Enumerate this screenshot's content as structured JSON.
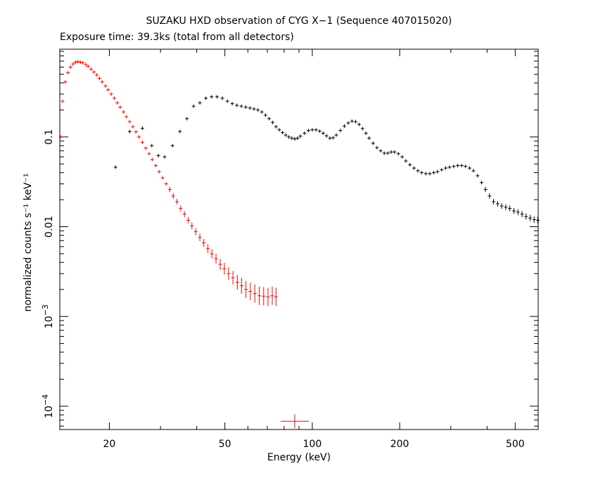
{
  "chart_data": {
    "type": "scatter",
    "title": "SUZAKU HXD observation of CYG X−1 (Sequence 407015020)",
    "subtitle": "Exposure time: 39.3ks (total from all detectors)",
    "xlabel": "Energy (keV)",
    "ylabel": "normalized counts s⁻¹ keV⁻¹",
    "x_scale": "log",
    "y_scale": "log",
    "xlim": [
      13.5,
      600
    ],
    "ylim": [
      5.5e-05,
      0.95
    ],
    "x_ticks": [
      {
        "value": 20,
        "label": "20"
      },
      {
        "value": 50,
        "label": "50"
      },
      {
        "value": 100,
        "label": "100"
      },
      {
        "value": 200,
        "label": "200"
      },
      {
        "value": 500,
        "label": "500"
      }
    ],
    "y_ticks": [
      {
        "value": 0.1,
        "label": "0.1"
      },
      {
        "value": 0.01,
        "label": "0.01"
      },
      {
        "value": 0.001,
        "base": "10",
        "exp": "−3"
      },
      {
        "value": 0.0001,
        "base": "10",
        "exp": "−4"
      }
    ],
    "grid": false,
    "series": [
      {
        "color": "#ff0000",
        "points": [
          [
            13.6,
            0.1
          ],
          [
            13.8,
            0.25
          ],
          [
            14.1,
            0.41
          ],
          [
            14.4,
            0.52
          ],
          [
            14.7,
            0.6
          ],
          [
            15.0,
            0.65
          ],
          [
            15.3,
            0.68
          ],
          [
            15.6,
            0.69
          ],
          [
            15.9,
            0.68
          ],
          [
            16.2,
            0.67
          ],
          [
            16.6,
            0.64
          ],
          [
            16.9,
            0.61
          ],
          [
            17.3,
            0.57
          ],
          [
            17.7,
            0.53
          ],
          [
            18.1,
            0.49
          ],
          [
            18.5,
            0.45
          ],
          [
            18.9,
            0.41
          ],
          [
            19.4,
            0.37
          ],
          [
            19.8,
            0.335
          ],
          [
            20.3,
            0.3
          ],
          [
            20.8,
            0.27
          ],
          [
            21.3,
            0.24
          ],
          [
            21.8,
            0.215
          ],
          [
            22.4,
            0.19
          ],
          [
            22.9,
            0.168
          ],
          [
            23.5,
            0.148
          ],
          [
            24.1,
            0.13
          ],
          [
            24.7,
            0.114
          ],
          [
            25.3,
            0.1
          ],
          [
            26.0,
            0.087
          ],
          [
            26.7,
            0.075
          ],
          [
            27.4,
            0.065
          ],
          [
            28.1,
            0.056
          ],
          [
            28.9,
            0.048
          ],
          [
            29.7,
            0.041
          ],
          [
            30.5,
            0.035
          ],
          [
            31.4,
            0.03
          ],
          [
            32.3,
            0.026
          ],
          [
            33.2,
            0.022
          ],
          [
            34.2,
            0.019
          ],
          [
            35.2,
            0.016
          ],
          [
            36.3,
            0.0138
          ],
          [
            37.4,
            0.0118
          ],
          [
            38.5,
            0.0102
          ],
          [
            39.7,
            0.0088
          ],
          [
            41.0,
            0.0076
          ],
          [
            42.3,
            0.0066
          ],
          [
            43.7,
            0.0057
          ],
          [
            45.1,
            0.005
          ],
          [
            46.6,
            0.0044
          ],
          [
            48.2,
            0.0038
          ],
          [
            49.8,
            0.0034
          ],
          [
            51.5,
            0.003
          ],
          [
            53.3,
            0.0027
          ],
          [
            55.2,
            0.0024
          ],
          [
            57.1,
            0.0022
          ],
          [
            59.1,
            0.002
          ],
          [
            61.2,
            0.0019
          ],
          [
            63.4,
            0.0018
          ],
          [
            65.7,
            0.0017
          ],
          [
            68.0,
            0.00168
          ],
          [
            70.4,
            0.00165
          ],
          [
            72.8,
            0.0017
          ],
          [
            75.0,
            0.00165
          ],
          [
            87,
            6.8e-05
          ]
        ]
      },
      {
        "color": "#000000",
        "points": [
          [
            21,
            0.046
          ],
          [
            23.5,
            0.115
          ],
          [
            26,
            0.125
          ],
          [
            28,
            0.08
          ],
          [
            29.5,
            0.062
          ],
          [
            31,
            0.06
          ],
          [
            33,
            0.08
          ],
          [
            35,
            0.115
          ],
          [
            37,
            0.16
          ],
          [
            39,
            0.22
          ],
          [
            41,
            0.24
          ],
          [
            43,
            0.27
          ],
          [
            45,
            0.28
          ],
          [
            47,
            0.28
          ],
          [
            49,
            0.27
          ],
          [
            51,
            0.25
          ],
          [
            53,
            0.235
          ],
          [
            55,
            0.225
          ],
          [
            57,
            0.22
          ],
          [
            59,
            0.215
          ],
          [
            61,
            0.21
          ],
          [
            63,
            0.205
          ],
          [
            65,
            0.2
          ],
          [
            67,
            0.19
          ],
          [
            69,
            0.175
          ],
          [
            71,
            0.16
          ],
          [
            73,
            0.145
          ],
          [
            75,
            0.13
          ],
          [
            77,
            0.12
          ],
          [
            79,
            0.112
          ],
          [
            81,
            0.105
          ],
          [
            83,
            0.1
          ],
          [
            85,
            0.097
          ],
          [
            87,
            0.095
          ],
          [
            89,
            0.097
          ],
          [
            91,
            0.102
          ],
          [
            94,
            0.11
          ],
          [
            97,
            0.118
          ],
          [
            100,
            0.12
          ],
          [
            103,
            0.12
          ],
          [
            106,
            0.116
          ],
          [
            109,
            0.11
          ],
          [
            112,
            0.103
          ],
          [
            115,
            0.097
          ],
          [
            118,
            0.098
          ],
          [
            121,
            0.105
          ],
          [
            125,
            0.118
          ],
          [
            129,
            0.132
          ],
          [
            133,
            0.143
          ],
          [
            137,
            0.15
          ],
          [
            141,
            0.148
          ],
          [
            145,
            0.138
          ],
          [
            149,
            0.124
          ],
          [
            153,
            0.11
          ],
          [
            157,
            0.097
          ],
          [
            162,
            0.085
          ],
          [
            167,
            0.076
          ],
          [
            172,
            0.07
          ],
          [
            177,
            0.066
          ],
          [
            182,
            0.066
          ],
          [
            187,
            0.068
          ],
          [
            192,
            0.068
          ],
          [
            198,
            0.065
          ],
          [
            204,
            0.06
          ],
          [
            210,
            0.054
          ],
          [
            217,
            0.049
          ],
          [
            224,
            0.045
          ],
          [
            231,
            0.042
          ],
          [
            238,
            0.04
          ],
          [
            246,
            0.039
          ],
          [
            254,
            0.039
          ],
          [
            262,
            0.04
          ],
          [
            270,
            0.041
          ],
          [
            279,
            0.043
          ],
          [
            288,
            0.045
          ],
          [
            297,
            0.046
          ],
          [
            307,
            0.047
          ],
          [
            317,
            0.048
          ],
          [
            327,
            0.048
          ],
          [
            337,
            0.047
          ],
          [
            348,
            0.045
          ],
          [
            359,
            0.042
          ],
          [
            371,
            0.037
          ],
          [
            383,
            0.031
          ],
          [
            395,
            0.026
          ],
          [
            408,
            0.022
          ],
          [
            421,
            0.019
          ],
          [
            435,
            0.018
          ],
          [
            449,
            0.017
          ],
          [
            464,
            0.0165
          ],
          [
            479,
            0.016
          ],
          [
            495,
            0.015
          ],
          [
            511,
            0.0145
          ],
          [
            528,
            0.0138
          ],
          [
            545,
            0.013
          ],
          [
            563,
            0.0125
          ],
          [
            581,
            0.012
          ],
          [
            598,
            0.0118
          ]
        ]
      }
    ]
  }
}
